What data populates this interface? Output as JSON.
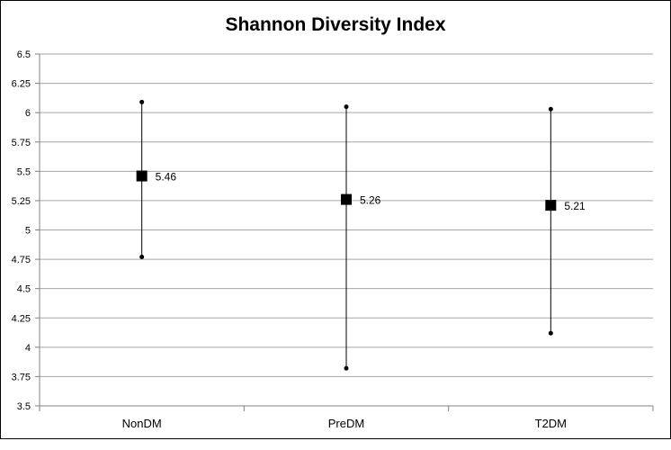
{
  "chart_data": {
    "type": "scatter",
    "title": "Shannon Diversity Index",
    "xlabel": "",
    "ylabel": "",
    "categories": [
      "NonDM",
      "PreDM",
      "T2DM"
    ],
    "ylim": [
      3.5,
      6.5
    ],
    "yticks": [
      "3.5",
      "3.75",
      "4",
      "4.25",
      "4.5",
      "4.75",
      "5",
      "5.25",
      "5.5",
      "5.75",
      "6",
      "6.25",
      "6.5"
    ],
    "grid": true,
    "points": [
      {
        "category": "NonDM",
        "value": 5.46,
        "low": 4.77,
        "high": 6.09,
        "label": "5.46"
      },
      {
        "category": "PreDM",
        "value": 5.26,
        "low": 3.82,
        "high": 6.05,
        "label": "5.26"
      },
      {
        "category": "T2DM",
        "value": 5.21,
        "low": 4.12,
        "high": 6.03,
        "label": "5.21"
      }
    ],
    "colors": {
      "marker": "#000000",
      "grid": "#a6a6a6",
      "axis": "#808080"
    }
  }
}
